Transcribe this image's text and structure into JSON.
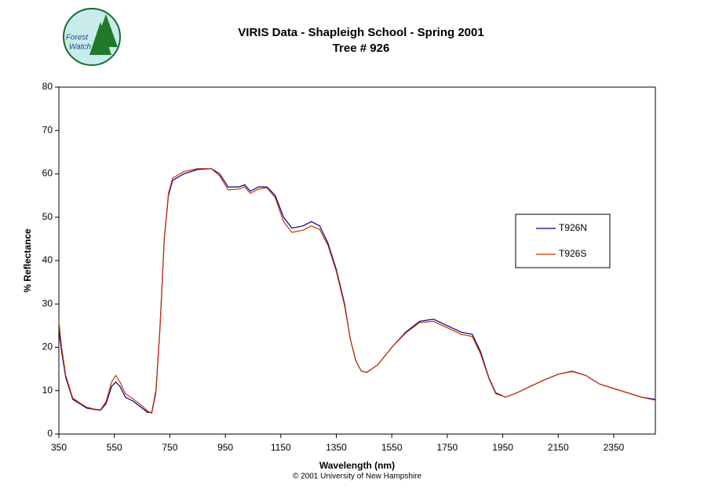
{
  "logo": {
    "line1": "Forest",
    "line2": "Watch"
  },
  "footer": "© 2001 University of New Hampshire",
  "chart_data": {
    "type": "line",
    "title": "VIRIS Data - Shapleigh School - Spring 2001",
    "subtitle": "Tree # 926",
    "x_label": "Wavelength (nm)",
    "y_label": "% Reflectance",
    "xlim": [
      350,
      2500
    ],
    "ylim": [
      0,
      80
    ],
    "xticks": [
      350,
      550,
      750,
      950,
      1150,
      1350,
      1550,
      1750,
      1950,
      2150,
      2350
    ],
    "yticks": [
      0,
      10,
      20,
      30,
      40,
      50,
      60,
      70,
      80
    ],
    "legend": "right",
    "x": [
      350,
      360,
      375,
      400,
      425,
      450,
      475,
      500,
      520,
      540,
      555,
      570,
      590,
      620,
      650,
      670,
      685,
      700,
      715,
      730,
      745,
      760,
      800,
      850,
      900,
      930,
      960,
      1000,
      1020,
      1040,
      1070,
      1100,
      1130,
      1160,
      1190,
      1230,
      1260,
      1290,
      1320,
      1350,
      1380,
      1400,
      1420,
      1440,
      1460,
      1500,
      1550,
      1600,
      1650,
      1700,
      1750,
      1800,
      1840,
      1870,
      1900,
      1925,
      1960,
      2000,
      2050,
      2100,
      2150,
      2200,
      2250,
      2300,
      2350,
      2400,
      2450,
      2500
    ],
    "series": [
      {
        "name": "T926N",
        "color": "#000080",
        "values": [
          24,
          19,
          13,
          8,
          7,
          6,
          5.7,
          5.5,
          7,
          11,
          12,
          11,
          8.5,
          7.5,
          6,
          5,
          5,
          10,
          25,
          45,
          55,
          58.5,
          60,
          61,
          61.2,
          60,
          57,
          57,
          57.5,
          56,
          57,
          57,
          55,
          50,
          47.5,
          48,
          49,
          48,
          44,
          38,
          30,
          22,
          17,
          14.5,
          14.2,
          16,
          20,
          23.5,
          26,
          26.5,
          25,
          23.5,
          23,
          19,
          13,
          9.5,
          8.5,
          9.5,
          11,
          12.5,
          13.8,
          14.5,
          13.5,
          11.5,
          10.5,
          9.5,
          8.5,
          8
        ]
      },
      {
        "name": "T926S",
        "color": "#cc3300",
        "values": [
          26,
          20,
          13.5,
          8.3,
          7.2,
          6.2,
          5.8,
          5.6,
          7.5,
          12,
          13.5,
          12,
          9.3,
          8,
          6.5,
          5.3,
          4.8,
          9.5,
          25,
          45,
          55.5,
          59,
          60.5,
          61.2,
          61.2,
          59.5,
          56.3,
          56.5,
          57,
          55.5,
          56.5,
          56.8,
          54.5,
          49,
          46.5,
          47,
          48,
          47.2,
          43.5,
          37.5,
          29.5,
          22,
          17,
          14.5,
          14.2,
          16,
          20,
          23.3,
          25.7,
          26,
          24.5,
          23,
          22.5,
          18.5,
          12.8,
          9.3,
          8.5,
          9.5,
          11,
          12.5,
          13.8,
          14.4,
          13.5,
          11.5,
          10.5,
          9.5,
          8.5,
          7.8
        ]
      }
    ]
  }
}
